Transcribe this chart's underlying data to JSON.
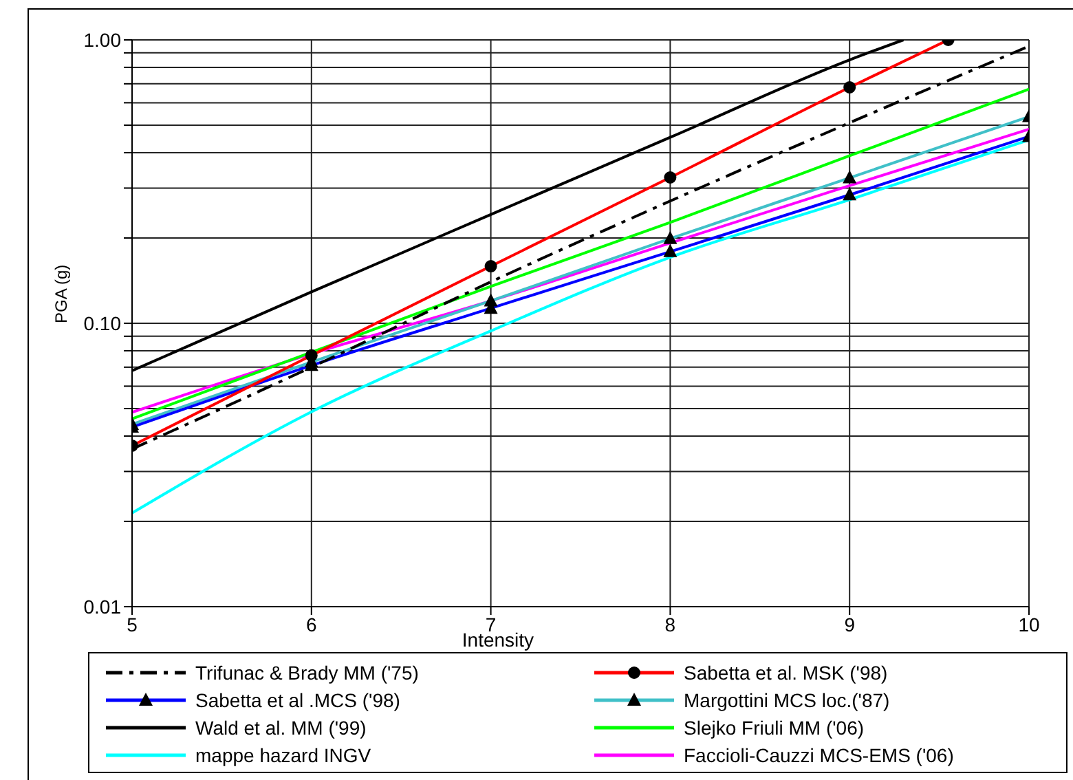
{
  "chart_data": {
    "type": "line",
    "xlabel": "Intensity",
    "ylabel": "PGA (g)",
    "x": [
      5,
      6,
      7,
      8,
      9,
      10
    ],
    "xlim": [
      5,
      10
    ],
    "xticks": [
      5,
      6,
      7,
      8,
      9,
      10
    ],
    "ylim": [
      0.01,
      1
    ],
    "log": "y",
    "yticks": [
      {
        "value": 0.01,
        "label": "0.01"
      },
      {
        "value": 0.02,
        "label": null
      },
      {
        "value": 0.03,
        "label": null
      },
      {
        "value": 0.04,
        "label": null
      },
      {
        "value": 0.05,
        "label": null
      },
      {
        "value": 0.06,
        "label": null
      },
      {
        "value": 0.07,
        "label": null
      },
      {
        "value": 0.08,
        "label": null
      },
      {
        "value": 0.09,
        "label": null
      },
      {
        "value": 0.1,
        "label": "0.10"
      },
      {
        "value": 0.2,
        "label": null
      },
      {
        "value": 0.3,
        "label": null
      },
      {
        "value": 0.4,
        "label": null
      },
      {
        "value": 0.5,
        "label": null
      },
      {
        "value": 0.6,
        "label": null
      },
      {
        "value": 0.7,
        "label": null
      },
      {
        "value": 0.8,
        "label": null
      },
      {
        "value": 0.9,
        "label": null
      },
      {
        "value": 1,
        "label": "1.00"
      }
    ],
    "grid": true,
    "legend": "bottom",
    "series": [
      {
        "name": "Trifunac & Brady MM ('75)",
        "color": "#000000",
        "line_style": "dashed",
        "marker": "none",
        "values": [
          0.036,
          0.07,
          0.14,
          0.27,
          0.51,
          0.95
        ]
      },
      {
        "name": "Sabetta et al. MSK ('98)",
        "color": "#ff0000",
        "marker": "circle",
        "x": [
          5,
          6,
          7,
          8,
          9,
          9.55
        ],
        "values": [
          0.037,
          0.077,
          0.159,
          0.327,
          0.68,
          1.0
        ]
      },
      {
        "name": "Sabetta et al .MCS ('98)",
        "color": "#0000ff",
        "marker": "triangle",
        "values": [
          0.043,
          0.071,
          0.113,
          0.179,
          0.284,
          0.456
        ]
      },
      {
        "name": "Margottini MCS loc.('87)",
        "color": "#40c0c8",
        "marker": "triangle",
        "values": [
          0.044,
          0.073,
          0.12,
          0.199,
          0.326,
          0.536
        ]
      },
      {
        "name": "Wald et al. MM ('99)",
        "color": "#000000",
        "marker": "none",
        "x": [
          5,
          6,
          7,
          8,
          9,
          9.3
        ],
        "values": [
          0.068,
          0.129,
          0.242,
          0.453,
          0.85,
          1.0
        ]
      },
      {
        "name": "Slejko Friuli MM ('06)",
        "color": "#00ff00",
        "marker": "none",
        "values": [
          0.046,
          0.079,
          0.135,
          0.227,
          0.39,
          0.67
        ]
      },
      {
        "name": "mappe hazard INGV",
        "color": "#00ffff",
        "marker": "none",
        "values": [
          0.0214,
          0.0487,
          0.094,
          0.171,
          0.273,
          0.444
        ]
      },
      {
        "name": "Faccioli-Cauzzi MCS-EMS ('06)",
        "color": "#ff00ff",
        "marker": "none",
        "values": [
          0.0485,
          0.078,
          0.12,
          0.192,
          0.306,
          0.484
        ]
      }
    ]
  }
}
